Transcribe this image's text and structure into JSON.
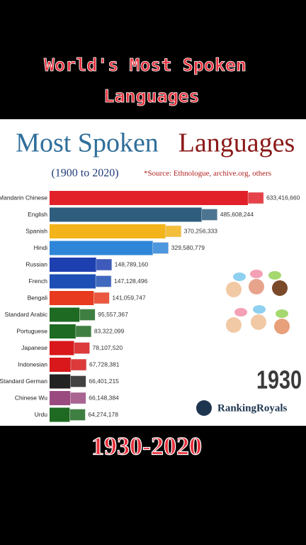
{
  "header": {
    "line1": "World's Most Spoken",
    "line2": "Languages"
  },
  "chart_data": {
    "type": "bar",
    "orientation": "horizontal",
    "title": [
      "Most Spoken",
      "Languages"
    ],
    "subtitle": "(1900 to 2020)",
    "source": "*Source: Ethnologue, archive.org, others",
    "year": "1930",
    "categories": [
      "Mandarin Chinese",
      "English",
      "Spanish",
      "Hindi",
      "Russian",
      "French",
      "Bengali",
      "Standard Arabic",
      "Portuguese",
      "Japanese",
      "Indonesian",
      "Standard German",
      "Chinese Wu",
      "Urdu"
    ],
    "values": [
      633416660,
      485608244,
      370256333,
      329580779,
      148789160,
      147128496,
      141059747,
      95557367,
      83322099,
      78107520,
      67728381,
      66401215,
      66148384,
      64274178
    ],
    "value_labels": [
      "633,416,660",
      "485,608,244",
      "370,256,333",
      "329,580,779",
      "148,789,160",
      "147,128,496",
      "141,059,747",
      "95,557,367",
      "83,322,099",
      "78,107,520",
      "67,728,381",
      "66,401,215",
      "66,148,384",
      "64,274,178"
    ],
    "colors": [
      "#e2202a",
      "#2e5d7e",
      "#f2b41a",
      "#2f86d9",
      "#1d3fb0",
      "#1d4fb5",
      "#e83a1e",
      "#1e6a22",
      "#1e6a22",
      "#d8181a",
      "#d8181a",
      "#222222",
      "#9b4a80",
      "#1e6a22"
    ],
    "xlim": [
      0,
      640000000
    ]
  },
  "brand": "RankingRoyals",
  "footer": "1930-2020"
}
